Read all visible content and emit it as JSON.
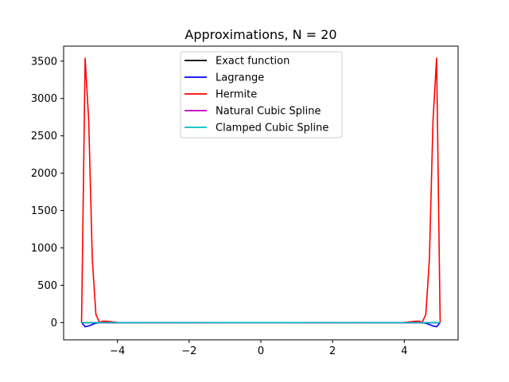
{
  "chart_data": {
    "type": "line",
    "title": "Approximations, N = 20",
    "xlabel": "",
    "ylabel": "",
    "xlim": [
      -5.5,
      5.5
    ],
    "ylim": [
      -230,
      3700
    ],
    "x_ticks": [
      -4,
      -2,
      0,
      2,
      4
    ],
    "x_tick_labels": [
      "−4",
      "−2",
      "0",
      "2",
      "4"
    ],
    "y_ticks": [
      0,
      500,
      1000,
      1500,
      2000,
      2500,
      3000,
      3500
    ],
    "y_tick_labels": [
      "0",
      "500",
      "1000",
      "1500",
      "2000",
      "2500",
      "3000",
      "3500"
    ],
    "grid": false,
    "legend_position": "upper center",
    "series": [
      {
        "name": "Exact function",
        "color": "#000000",
        "x": [
          -5.0,
          -4.0,
          -3.0,
          -2.0,
          -1.0,
          0.0,
          1.0,
          2.0,
          3.0,
          4.0,
          5.0
        ],
        "y": [
          0.04,
          0.06,
          0.1,
          0.2,
          0.5,
          1.0,
          0.5,
          0.2,
          0.1,
          0.06,
          0.04
        ]
      },
      {
        "name": "Lagrange",
        "color": "#0000ff",
        "x": [
          -5.0,
          -4.9,
          -4.8,
          -4.7,
          -4.6,
          -4.5,
          -4.0,
          -3.0,
          0.0,
          3.0,
          4.0,
          4.5,
          4.6,
          4.7,
          4.8,
          4.9,
          5.0
        ],
        "y": [
          0,
          -55,
          -45,
          -25,
          -8,
          0,
          0,
          0,
          1,
          0,
          0,
          0,
          -8,
          -25,
          -45,
          -55,
          0
        ]
      },
      {
        "name": "Hermite",
        "color": "#ff0000",
        "x": [
          -5.0,
          -4.9,
          -4.8,
          -4.7,
          -4.6,
          -4.5,
          -4.4,
          -4.3,
          -4.0,
          -3.0,
          0.0,
          3.0,
          4.0,
          4.3,
          4.4,
          4.5,
          4.6,
          4.7,
          4.8,
          4.9,
          5.0
        ],
        "y": [
          0,
          3540,
          2700,
          850,
          110,
          5,
          20,
          18,
          2,
          0,
          1,
          0,
          2,
          18,
          20,
          5,
          110,
          850,
          2700,
          3540,
          0
        ]
      },
      {
        "name": "Natural Cubic Spline",
        "color": "#bf00bf",
        "x": [
          -5.0,
          -4.0,
          -3.0,
          -2.0,
          -1.0,
          0.0,
          1.0,
          2.0,
          3.0,
          4.0,
          5.0
        ],
        "y": [
          0.04,
          0.06,
          0.1,
          0.2,
          0.5,
          1.0,
          0.5,
          0.2,
          0.1,
          0.06,
          0.04
        ]
      },
      {
        "name": "Clamped Cubic Spline",
        "color": "#00bfbf",
        "x": [
          -5.0,
          -4.0,
          -3.0,
          -2.0,
          -1.0,
          0.0,
          1.0,
          2.0,
          3.0,
          4.0,
          5.0
        ],
        "y": [
          0.04,
          0.06,
          0.1,
          0.2,
          0.5,
          1.0,
          0.5,
          0.2,
          0.1,
          0.06,
          0.04
        ]
      }
    ]
  }
}
